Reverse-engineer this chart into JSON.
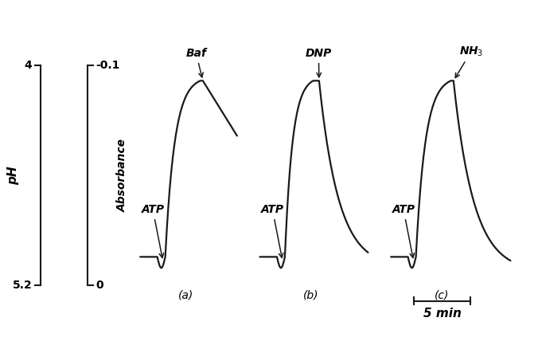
{
  "fig_width": 6.76,
  "fig_height": 4.38,
  "bg_color": "#ffffff",
  "line_color": "#1a1a1a",
  "line_width": 1.6,
  "panel_labels": [
    "(a)",
    "(b)",
    "(c)"
  ],
  "drug_labels": [
    "Baf",
    "DNP",
    "NH₃"
  ],
  "atp_label": "ATP",
  "time_label": "5 min",
  "font_size": 10,
  "annotation_font_size": 10,
  "ph_top": "4",
  "ph_bottom": "5.2",
  "abs_top": "-0.1",
  "abs_bottom": "0",
  "ph_label": "pH",
  "abs_label": "Absorbance"
}
